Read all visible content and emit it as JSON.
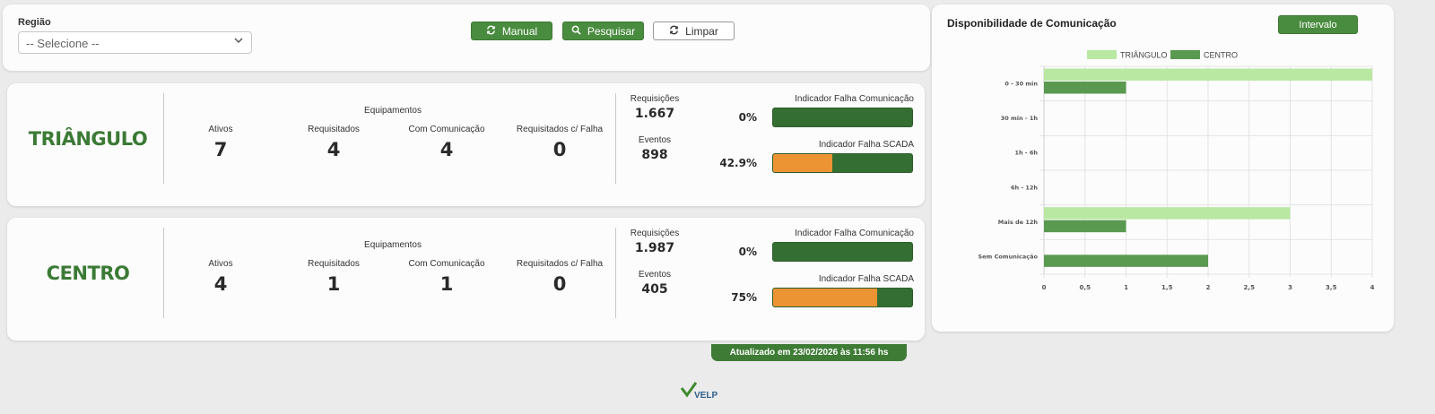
{
  "filter": {
    "region_label": "Região",
    "region_selected": "-- Selecione --",
    "buttons": {
      "manual": "Manual",
      "pesquisar": "Pesquisar",
      "limpar": "Limpar"
    }
  },
  "regions": [
    {
      "name": "TRIÂNGULO",
      "equipamentos_title": "Equipamentos",
      "ativos_label": "Ativos",
      "ativos": "7",
      "requisitados_label": "Requisitados",
      "requisitados": "4",
      "com_comunicacao_label": "Com Comunicação",
      "com_comunicacao": "4",
      "requisitados_falha_label": "Requisitados c/ Falha",
      "requisitados_falha": "0",
      "requisicoes_label": "Requisições",
      "requisicoes": "1.667",
      "eventos_label": "Eventos",
      "eventos": "898",
      "ind_comunicacao_label": "Indicador Falha Comunicação",
      "ind_comunicacao_pct": "0%",
      "ind_comunicacao_value": 0,
      "ind_scada_label": "Indicador Falha SCADA",
      "ind_scada_pct": "42.9%",
      "ind_scada_value": 42.9
    },
    {
      "name": "CENTRO",
      "equipamentos_title": "Equipamentos",
      "ativos_label": "Ativos",
      "ativos": "4",
      "requisitados_label": "Requisitados",
      "requisitados": "1",
      "com_comunicacao_label": "Com Comunicação",
      "com_comunicacao": "1",
      "requisitados_falha_label": "Requisitados c/ Falha",
      "requisitados_falha": "0",
      "requisicoes_label": "Requisições",
      "requisicoes": "1.987",
      "eventos_label": "Eventos",
      "eventos": "405",
      "ind_comunicacao_label": "Indicador Falha Comunicação",
      "ind_comunicacao_pct": "0%",
      "ind_comunicacao_value": 0,
      "ind_scada_label": "Indicador Falha SCADA",
      "ind_scada_pct": "75%",
      "ind_scada_value": 75
    }
  ],
  "updated": "Atualizado em 23/02/2026 às 11:56 hs",
  "logo_text": "VELP",
  "chart_panel": {
    "title": "Disponibilidade de Comunicação",
    "interval_button": "Intervalo"
  },
  "colors": {
    "primary_green": "#4a8c3f",
    "dark_green": "#356e32",
    "orange": "#ec9334",
    "series_light": "#b9e8a2",
    "series_dark": "#5a9950"
  },
  "chart_data": {
    "type": "bar",
    "orientation": "horizontal",
    "categories": [
      "0 - 30 min",
      "30 min - 1h",
      "1h - 6h",
      "6h - 12h",
      "Mais de 12h",
      "Sem Comunicação"
    ],
    "series": [
      {
        "name": "TRIÂNGULO",
        "color": "#b9e8a2",
        "values": [
          4,
          0,
          0,
          0,
          3,
          0
        ]
      },
      {
        "name": "CENTRO",
        "color": "#5a9950",
        "values": [
          1,
          0,
          0,
          0,
          1,
          2
        ]
      }
    ],
    "xlim": [
      0,
      4
    ],
    "xticks": [
      "0",
      "0,5",
      "1",
      "1,5",
      "2",
      "2,5",
      "3",
      "3,5",
      "4"
    ],
    "grid": true,
    "legend_position": "top"
  }
}
